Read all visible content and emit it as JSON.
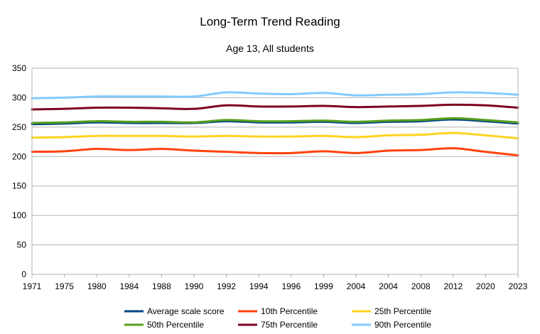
{
  "chart_data": {
    "type": "line",
    "title": "Long-Term Trend Reading",
    "subtitle": "Age 13, All students",
    "xlabel": "",
    "ylabel": "",
    "ylim": [
      0,
      350
    ],
    "yticks": [
      "0",
      "50",
      "100",
      "150",
      "200",
      "250",
      "300",
      "350"
    ],
    "categories": [
      "1971",
      "1975",
      "1980",
      "1984",
      "1988",
      "1990",
      "1992",
      "1994",
      "1996",
      "1999",
      "2004",
      "2004",
      "2008",
      "2012",
      "2020",
      "2023"
    ],
    "grid": "horizontal",
    "legend_position": "bottom",
    "series": [
      {
        "name": "Average scale score",
        "color": "#004586",
        "values": [
          255,
          256,
          258,
          257,
          257,
          257,
          260,
          258,
          258,
          259,
          257,
          259,
          260,
          263,
          260,
          256
        ]
      },
      {
        "name": "10th Percentile",
        "color": "#ff420e",
        "values": [
          208,
          209,
          213,
          211,
          213,
          210,
          208,
          206,
          206,
          209,
          206,
          210,
          211,
          214,
          208,
          202
        ]
      },
      {
        "name": "25th Percentile",
        "color": "#ffd320",
        "values": [
          232,
          233,
          235,
          235,
          235,
          234,
          235,
          234,
          234,
          235,
          233,
          236,
          237,
          240,
          236,
          231
        ]
      },
      {
        "name": "50th Percentile",
        "color": "#579d1c",
        "values": [
          257,
          258,
          260,
          259,
          259,
          258,
          262,
          260,
          260,
          261,
          259,
          261,
          262,
          265,
          262,
          258
        ]
      },
      {
        "name": "75th Percentile",
        "color": "#7e0021",
        "values": [
          280,
          281,
          283,
          283,
          282,
          281,
          287,
          285,
          285,
          286,
          284,
          285,
          286,
          288,
          287,
          283
        ]
      },
      {
        "name": "90th Percentile",
        "color": "#83caff",
        "values": [
          299,
          300,
          302,
          302,
          302,
          302,
          309,
          307,
          306,
          308,
          304,
          305,
          306,
          309,
          308,
          305
        ]
      }
    ]
  }
}
